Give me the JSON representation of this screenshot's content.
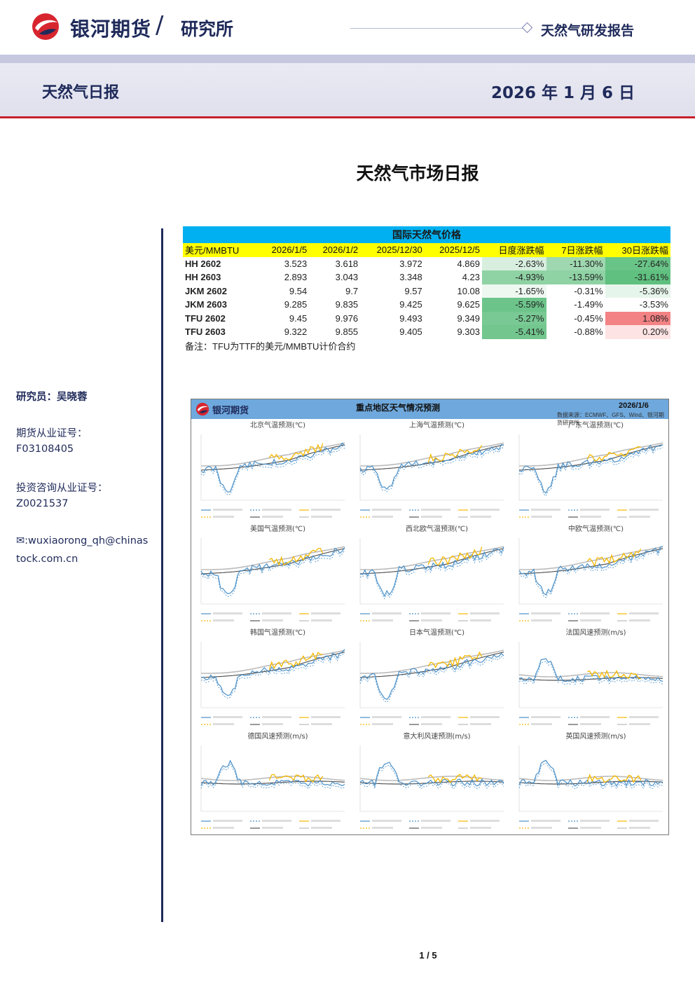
{
  "header": {
    "brand": "银河期货",
    "slash": "/",
    "department": "研究所",
    "report_type": "天然气研发报告",
    "report_name": "天然气日报",
    "date": "2026 年 1 月 6 日"
  },
  "title": "天然气市场日报",
  "sidebar": {
    "researcher": "研究员：吴晓蓉",
    "futures_cert_label": "期货从业证号：",
    "futures_cert": "F03108405",
    "invest_cert_label": "投资咨询从业证号：",
    "invest_cert": "Z0021537",
    "email_line1": "✉:wuxiaorong_qh@chinas",
    "email_line2": "tock.com.cn"
  },
  "price_table": {
    "title": "国际天然气价格",
    "headers": [
      "美元/MMBTU",
      "2026/1/5",
      "2026/1/2",
      "2025/12/30",
      "2025/12/5",
      "日度涨跌幅",
      "7日涨跌幅",
      "30日涨跌幅"
    ],
    "rows": [
      {
        "name": "HH 2602",
        "v": [
          "3.523",
          "3.618",
          "3.972",
          "4.869"
        ],
        "chg": [
          "-2.63%",
          "-11.30%",
          "-27.64%"
        ],
        "colors": [
          "#d8efdf",
          "#9fd8b0",
          "#69c487"
        ]
      },
      {
        "name": "HH 2603",
        "v": [
          "2.893",
          "3.043",
          "3.348",
          "4.23"
        ],
        "chg": [
          "-4.93%",
          "-13.59%",
          "-31.61%"
        ],
        "colors": [
          "#8fd2a4",
          "#8fd2a4",
          "#5fc07f"
        ]
      },
      {
        "name": "JKM 2602",
        "v": [
          "9.54",
          "9.7",
          "9.57",
          "10.08"
        ],
        "chg": [
          "-1.65%",
          "-0.31%",
          "-5.36%"
        ],
        "colors": [
          "#eef8f1",
          "#ffffff",
          "#e6f5eb"
        ]
      },
      {
        "name": "JKM 2603",
        "v": [
          "9.285",
          "9.835",
          "9.425",
          "9.625"
        ],
        "chg": [
          "-5.59%",
          "-1.49%",
          "-3.53%"
        ],
        "colors": [
          "#6cc48a",
          "#ffffff",
          "#ffffff"
        ]
      },
      {
        "name": "TFU 2602",
        "v": [
          "9.45",
          "9.976",
          "9.493",
          "9.349"
        ],
        "chg": [
          "-5.27%",
          "-0.45%",
          "1.08%"
        ],
        "colors": [
          "#78c993",
          "#ffffff",
          "#f28284"
        ]
      },
      {
        "name": "TFU 2603",
        "v": [
          "9.322",
          "9.855",
          "9.405",
          "9.303"
        ],
        "chg": [
          "-5.41%",
          "-0.88%",
          "0.20%"
        ],
        "colors": [
          "#72c68e",
          "#ffffff",
          "#fde3e3"
        ]
      }
    ],
    "note": "备注：TFU为TTF的美元/MMBTU计价合约"
  },
  "weather_panel": {
    "brand": "银河期货",
    "title": "重点地区天气情况预测",
    "date": "2026/1/6",
    "source": "数据来源：ECMWF、GFS、Wind、银河期货研究所",
    "charts": [
      {
        "title": "北京气温预测(℃)"
      },
      {
        "title": "上海气温预测(℃)"
      },
      {
        "title": "广东气温预测(℃)"
      },
      {
        "title": "美国气温预测(℃)"
      },
      {
        "title": "西北欧气温预测(℃)"
      },
      {
        "title": "中欧气温预测(℃)"
      },
      {
        "title": "韩国气温预测(℃)"
      },
      {
        "title": "日本气温预测(℃)"
      },
      {
        "title": "法国风速预测(m/s)"
      },
      {
        "title": "德国风速预测(m/s)"
      },
      {
        "title": "意大利风速预测(m/s)"
      },
      {
        "title": "英国风速预测(m/s)"
      }
    ],
    "colors": {
      "ecmwf": "#4a90c8",
      "gfs": "#f5b800",
      "avg": "#555555",
      "hist": "#bbbbbb"
    }
  },
  "page_number": "1 / 5"
}
